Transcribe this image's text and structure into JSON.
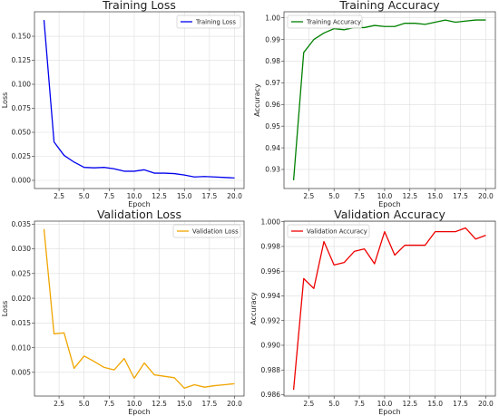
{
  "chart_data": [
    {
      "type": "line",
      "title": "Training Loss",
      "xlabel": "Epoch",
      "ylabel": "Loss",
      "xlim": [
        0.05,
        20.95
      ],
      "ylim": [
        -0.0085,
        0.1755
      ],
      "xticks": [
        2.5,
        5.0,
        7.5,
        10.0,
        12.5,
        15.0,
        17.5,
        20.0
      ],
      "xtick_labels": [
        "2.5",
        "5.0",
        "7.5",
        "10.0",
        "12.5",
        "15.0",
        "17.5",
        "20.0"
      ],
      "yticks": [
        0.0,
        0.025,
        0.05,
        0.075,
        0.1,
        0.125,
        0.15
      ],
      "ytick_labels": [
        "0.000",
        "0.025",
        "0.050",
        "0.075",
        "0.100",
        "0.125",
        "0.150"
      ],
      "grid": true,
      "legend_position": "top-right",
      "series": [
        {
          "name": "Training Loss",
          "color": "#0000ee",
          "x": [
            1,
            2,
            3,
            4,
            5,
            6,
            7,
            8,
            9,
            10,
            11,
            12,
            13,
            14,
            15,
            16,
            17,
            18,
            19,
            20
          ],
          "y": [
            0.167,
            0.04,
            0.026,
            0.019,
            0.0135,
            0.013,
            0.0135,
            0.012,
            0.0095,
            0.0095,
            0.011,
            0.0075,
            0.0075,
            0.007,
            0.0055,
            0.0035,
            0.004,
            0.0035,
            0.003,
            0.0025
          ]
        }
      ]
    },
    {
      "type": "line",
      "title": "Training Accuracy",
      "xlabel": "Epoch",
      "ylabel": "Accuracy",
      "xlim": [
        0.05,
        20.95
      ],
      "ylim": [
        0.9212,
        1.0028
      ],
      "xticks": [
        2.5,
        5.0,
        7.5,
        10.0,
        12.5,
        15.0,
        17.5,
        20.0
      ],
      "xtick_labels": [
        "2.5",
        "5.0",
        "7.5",
        "10.0",
        "12.5",
        "15.0",
        "17.5",
        "20.0"
      ],
      "yticks": [
        0.93,
        0.94,
        0.95,
        0.96,
        0.97,
        0.98,
        0.99,
        1.0
      ],
      "ytick_labels": [
        "0.93",
        "0.94",
        "0.95",
        "0.96",
        "0.97",
        "0.98",
        "0.99",
        "1.00"
      ],
      "grid": true,
      "legend_position": "top-left",
      "series": [
        {
          "name": "Training Accuracy",
          "color": "#008000",
          "x": [
            1,
            2,
            3,
            4,
            5,
            6,
            7,
            8,
            9,
            10,
            11,
            12,
            13,
            14,
            15,
            16,
            17,
            18,
            19,
            20
          ],
          "y": [
            0.925,
            0.984,
            0.99,
            0.993,
            0.995,
            0.9945,
            0.9955,
            0.9955,
            0.9965,
            0.996,
            0.996,
            0.9975,
            0.9975,
            0.997,
            0.998,
            0.999,
            0.998,
            0.9985,
            0.999,
            0.999
          ]
        }
      ]
    },
    {
      "type": "line",
      "title": "Validation Loss",
      "xlabel": "Epoch",
      "ylabel": "Loss",
      "xlim": [
        0.05,
        20.95
      ],
      "ylim": [
        0.0002,
        0.0356
      ],
      "xticks": [
        2.5,
        5.0,
        7.5,
        10.0,
        12.5,
        15.0,
        17.5,
        20.0
      ],
      "xtick_labels": [
        "2.5",
        "5.0",
        "7.5",
        "10.0",
        "12.5",
        "15.0",
        "17.5",
        "20.0"
      ],
      "yticks": [
        0.005,
        0.01,
        0.015,
        0.02,
        0.025,
        0.03,
        0.035
      ],
      "ytick_labels": [
        "0.005",
        "0.010",
        "0.015",
        "0.020",
        "0.025",
        "0.030",
        "0.035"
      ],
      "grid": true,
      "legend_position": "top-right",
      "series": [
        {
          "name": "Validation Loss",
          "color": "#f0a500",
          "x": [
            1,
            2,
            3,
            4,
            5,
            6,
            7,
            8,
            9,
            10,
            11,
            12,
            13,
            14,
            15,
            16,
            17,
            18,
            19,
            20
          ],
          "y": [
            0.034,
            0.0128,
            0.013,
            0.0058,
            0.0083,
            0.0072,
            0.006,
            0.0055,
            0.0078,
            0.0038,
            0.0069,
            0.0045,
            0.0042,
            0.0039,
            0.0018,
            0.0025,
            0.002,
            0.0023,
            0.0025,
            0.0027
          ]
        }
      ]
    },
    {
      "type": "line",
      "title": "Validation Accuracy",
      "xlabel": "Epoch",
      "ylabel": "Accuracy",
      "xlim": [
        0.05,
        20.95
      ],
      "ylim": [
        0.98589,
        1.00005
      ],
      "xticks": [
        2.5,
        5.0,
        7.5,
        10.0,
        12.5,
        15.0,
        17.5,
        20.0
      ],
      "xtick_labels": [
        "2.5",
        "5.0",
        "7.5",
        "10.0",
        "12.5",
        "15.0",
        "17.5",
        "20.0"
      ],
      "yticks": [
        0.986,
        0.988,
        0.99,
        0.992,
        0.994,
        0.996,
        0.998,
        1.0
      ],
      "ytick_labels": [
        "0.986",
        "0.988",
        "0.990",
        "0.992",
        "0.994",
        "0.996",
        "0.998",
        "1.000"
      ],
      "grid": true,
      "legend_position": "top-left",
      "series": [
        {
          "name": "Validation Accuracy",
          "color": "#ee0000",
          "x": [
            1,
            2,
            3,
            4,
            5,
            6,
            7,
            8,
            9,
            10,
            11,
            12,
            13,
            14,
            15,
            16,
            17,
            18,
            19,
            20
          ],
          "y": [
            0.9864,
            0.9954,
            0.9946,
            0.9984,
            0.9965,
            0.9967,
            0.9976,
            0.9978,
            0.9966,
            0.9992,
            0.9973,
            0.9981,
            0.9981,
            0.9981,
            0.9992,
            0.9992,
            0.9992,
            0.9995,
            0.9986,
            0.9989
          ]
        }
      ]
    }
  ]
}
